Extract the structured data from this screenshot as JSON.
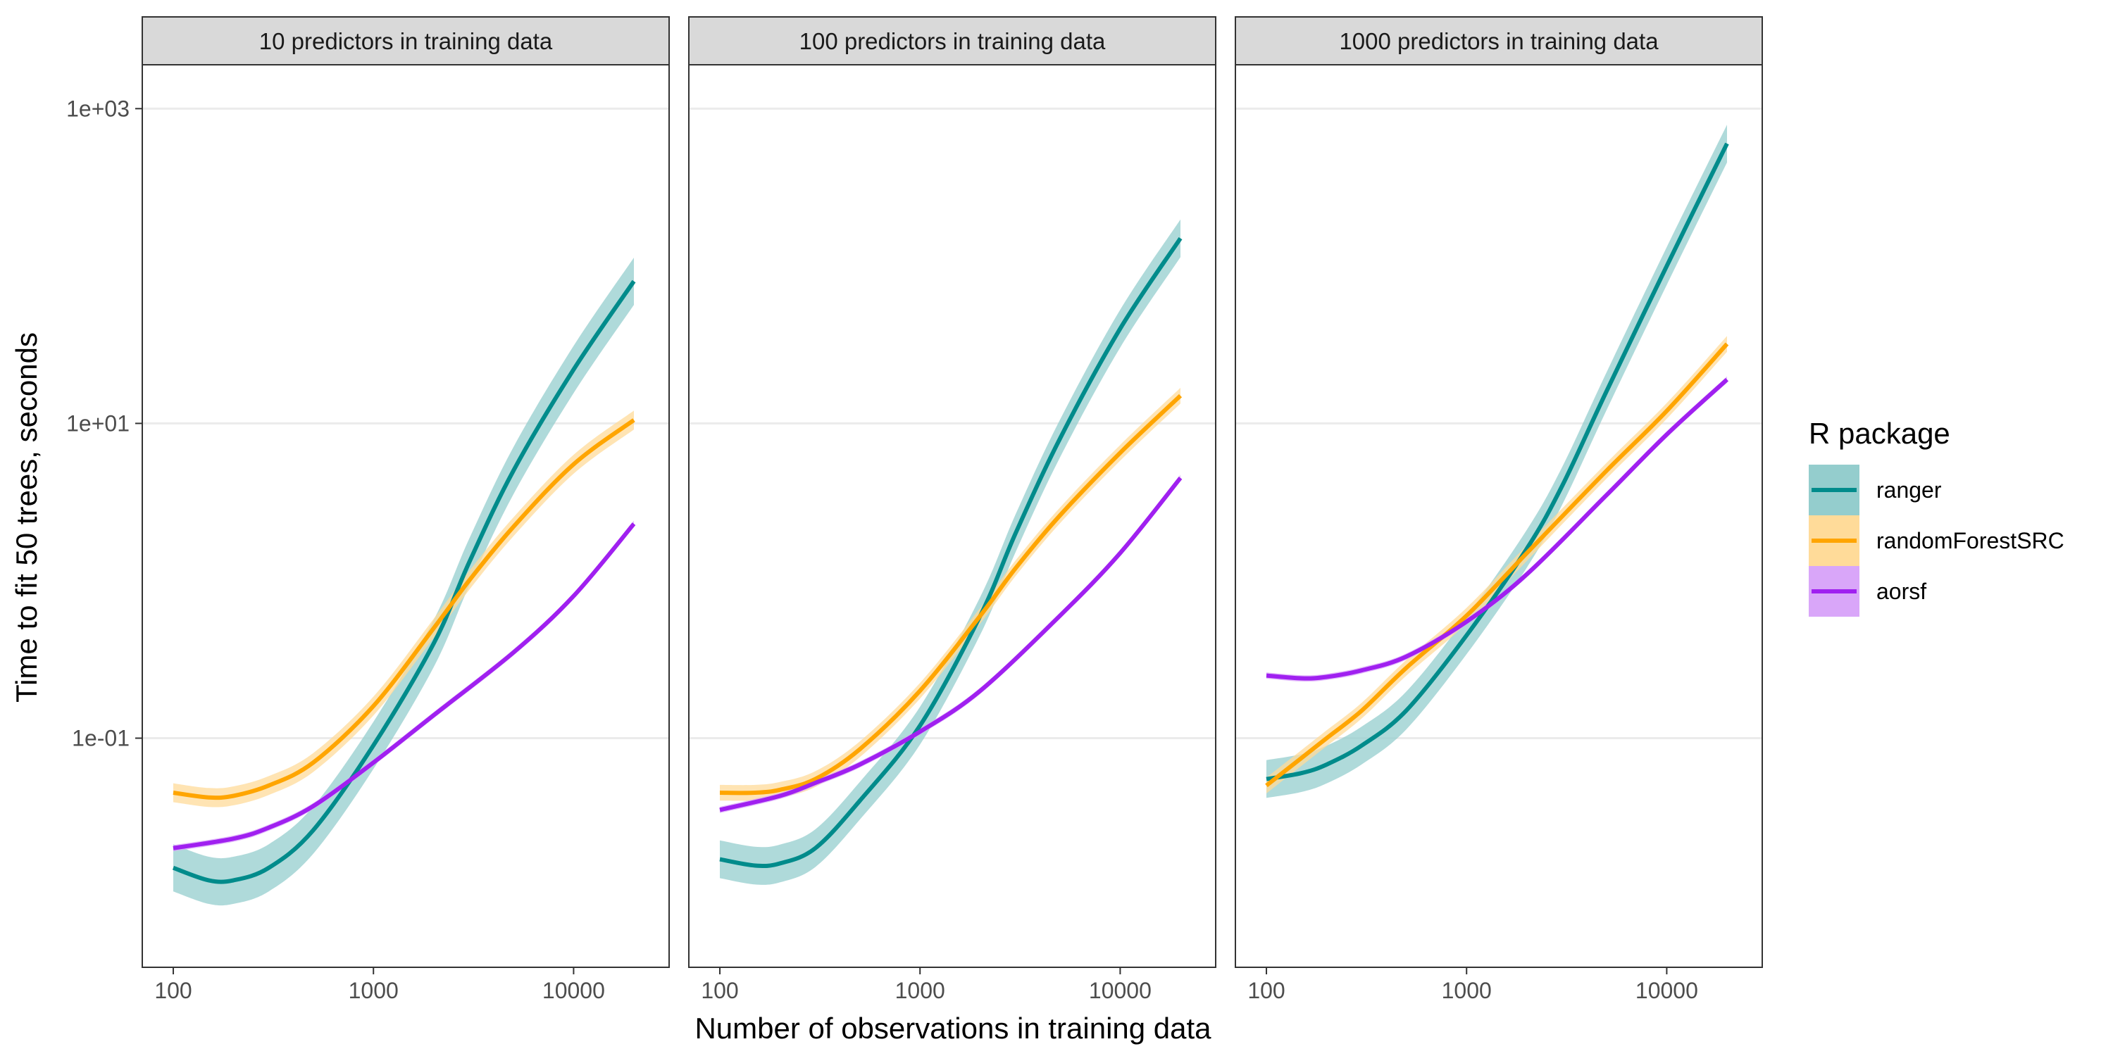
{
  "chart_data": {
    "type": "line",
    "x_scale": "log10",
    "y_scale": "log10",
    "xlabel": "Number of observations in training data",
    "ylabel": "Time to fit 50 trees, seconds",
    "x_ticks": [
      100,
      1000,
      10000
    ],
    "x_tick_labels": [
      "100",
      "1000",
      "10000"
    ],
    "y_ticks": [
      0.1,
      10,
      1000
    ],
    "y_tick_labels": [
      "1e-01",
      "1e+01",
      "1e+03"
    ],
    "xlim": [
      70,
      30000
    ],
    "ylim": [
      0.0035,
      1900
    ],
    "grid": true,
    "legend": {
      "title": "R package",
      "position": "right",
      "entries": [
        {
          "name": "ranger",
          "color": "#008b8b",
          "band_color": "#94cdcd"
        },
        {
          "name": "randomForestSRC",
          "color": "#ffa500",
          "band_color": "#ffdb99"
        },
        {
          "name": "aorsf",
          "color": "#a020f0",
          "band_color": "#d9a6f9"
        }
      ]
    },
    "panels": [
      {
        "title": "10 predictors in training data",
        "series": [
          {
            "name": "ranger",
            "ci": 0.15,
            "points": [
              [
                100,
                0.015
              ],
              [
                150,
                0.0125
              ],
              [
                200,
                0.0125
              ],
              [
                300,
                0.015
              ],
              [
                500,
                0.026
              ],
              [
                1000,
                0.09
              ],
              [
                2000,
                0.4
              ],
              [
                3000,
                1.3
              ],
              [
                5000,
                5.0
              ],
              [
                10000,
                22
              ],
              [
                20000,
                80
              ]
            ]
          },
          {
            "name": "randomForestSRC",
            "ci": 0.06,
            "points": [
              [
                100,
                0.045
              ],
              [
                150,
                0.042
              ],
              [
                200,
                0.043
              ],
              [
                300,
                0.05
              ],
              [
                500,
                0.07
              ],
              [
                1000,
                0.16
              ],
              [
                2000,
                0.5
              ],
              [
                3000,
                1.0
              ],
              [
                5000,
                2.2
              ],
              [
                10000,
                5.5
              ],
              [
                20000,
                10.5
              ]
            ]
          },
          {
            "name": "aorsf",
            "ci": 0.02,
            "points": [
              [
                100,
                0.02
              ],
              [
                200,
                0.023
              ],
              [
                300,
                0.027
              ],
              [
                500,
                0.037
              ],
              [
                1000,
                0.07
              ],
              [
                2000,
                0.14
              ],
              [
                5000,
                0.35
              ],
              [
                10000,
                0.8
              ],
              [
                20000,
                2.3
              ]
            ]
          }
        ]
      },
      {
        "title": "100 predictors in training data",
        "series": [
          {
            "name": "ranger",
            "ci": 0.12,
            "points": [
              [
                100,
                0.017
              ],
              [
                150,
                0.0155
              ],
              [
                200,
                0.016
              ],
              [
                300,
                0.02
              ],
              [
                500,
                0.04
              ],
              [
                1000,
                0.12
              ],
              [
                2000,
                0.6
              ],
              [
                3000,
                2.0
              ],
              [
                5000,
                8.0
              ],
              [
                10000,
                40
              ],
              [
                20000,
                150
              ]
            ]
          },
          {
            "name": "randomForestSRC",
            "ci": 0.05,
            "points": [
              [
                100,
                0.045
              ],
              [
                150,
                0.045
              ],
              [
                200,
                0.047
              ],
              [
                300,
                0.055
              ],
              [
                500,
                0.085
              ],
              [
                1000,
                0.2
              ],
              [
                2000,
                0.6
              ],
              [
                3000,
                1.2
              ],
              [
                5000,
                2.6
              ],
              [
                10000,
                6.5
              ],
              [
                20000,
                15
              ]
            ]
          },
          {
            "name": "aorsf",
            "ci": 0.02,
            "points": [
              [
                100,
                0.035
              ],
              [
                200,
                0.043
              ],
              [
                300,
                0.052
              ],
              [
                500,
                0.068
              ],
              [
                1000,
                0.11
              ],
              [
                2000,
                0.2
              ],
              [
                5000,
                0.6
              ],
              [
                10000,
                1.5
              ],
              [
                20000,
                4.5
              ]
            ]
          }
        ]
      },
      {
        "title": "1000 predictors in training data",
        "series": [
          {
            "name": "ranger",
            "ci": 0.12,
            "points": [
              [
                100,
                0.055
              ],
              [
                150,
                0.06
              ],
              [
                200,
                0.068
              ],
              [
                300,
                0.09
              ],
              [
                500,
                0.15
              ],
              [
                1000,
                0.45
              ],
              [
                2000,
                1.6
              ],
              [
                3000,
                4.0
              ],
              [
                5000,
                16
              ],
              [
                10000,
                100
              ],
              [
                20000,
                600
              ]
            ]
          },
          {
            "name": "randomForestSRC",
            "ci": 0.05,
            "points": [
              [
                100,
                0.05
              ],
              [
                150,
                0.075
              ],
              [
                200,
                0.1
              ],
              [
                300,
                0.15
              ],
              [
                500,
                0.28
              ],
              [
                1000,
                0.6
              ],
              [
                2000,
                1.5
              ],
              [
                5000,
                5.0
              ],
              [
                10000,
                12
              ],
              [
                20000,
                32
              ]
            ]
          },
          {
            "name": "aorsf",
            "ci": 0.02,
            "points": [
              [
                100,
                0.25
              ],
              [
                150,
                0.24
              ],
              [
                200,
                0.245
              ],
              [
                300,
                0.27
              ],
              [
                500,
                0.33
              ],
              [
                1000,
                0.55
              ],
              [
                2000,
                1.1
              ],
              [
                5000,
                3.5
              ],
              [
                10000,
                8.5
              ],
              [
                20000,
                19
              ]
            ]
          }
        ]
      }
    ]
  }
}
